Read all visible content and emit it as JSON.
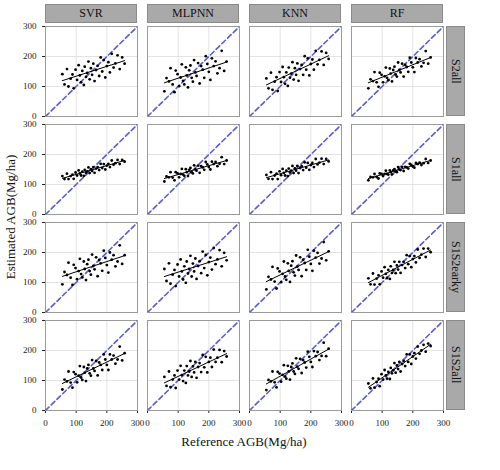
{
  "chart_data": {
    "type": "scatter",
    "x_label": "Reference AGB(Mg/ha)",
    "y_label": "Estimated AGB(Mg/ha)",
    "columns": [
      "SVR",
      "MLPNN",
      "KNN",
      "RF"
    ],
    "rows": [
      "S2all",
      "S1all",
      "S1S2earky",
      "S1S2all"
    ],
    "xlim": [
      0,
      300
    ],
    "ylim": [
      0,
      300
    ],
    "xticks": [
      0,
      100,
      200,
      300
    ],
    "yticks": [
      0,
      100,
      200,
      300
    ],
    "grid": true,
    "tick_labels": true,
    "series": [
      {
        "type": "scatter",
        "color": "#000000",
        "marker": "circle"
      },
      {
        "type": "regression",
        "color": "#000000",
        "line_style": "solid"
      },
      {
        "type": "line",
        "color": "#5b5fc7",
        "line_style": "dashed",
        "x": [
          0,
          300
        ],
        "values": [
          0,
          300
        ]
      }
    ],
    "x": [
      55,
      62,
      70,
      75,
      82,
      88,
      92,
      98,
      103,
      108,
      112,
      116,
      120,
      125,
      128,
      132,
      136,
      140,
      144,
      148,
      152,
      156,
      160,
      165,
      170,
      175,
      180,
      185,
      190,
      195,
      200,
      205,
      210,
      216,
      222,
      228,
      235,
      242,
      250,
      258
    ],
    "panels": [
      {
        "row": "S2all",
        "column": "SVR",
        "values": [
          141,
          107,
          158,
          100,
          126,
          140,
          94,
          156,
          122,
          171,
          137,
          114,
          152,
          105,
          166,
          132,
          145,
          183,
          124,
          161,
          139,
          176,
          118,
          155,
          169,
          135,
          197,
          150,
          188,
          130,
          168,
          181,
          147,
          209,
          163,
          177,
          204,
          158,
          197,
          176
        ]
      },
      {
        "row": "S2all",
        "column": "MLPNN",
        "values": [
          84,
          128,
          117,
          161,
          107,
          81,
          153,
          141,
          101,
          130,
          174,
          119,
          107,
          164,
          137,
          97,
          154,
          170,
          129,
          116,
          188,
          147,
          135,
          178,
          110,
          168,
          156,
          129,
          201,
          175,
          149,
          122,
          194,
          168,
          184,
          144,
          161,
          219,
          152,
          183
        ]
      },
      {
        "row": "S2all",
        "column": "KNN",
        "values": [
          127,
          94,
          146,
          89,
          116,
          131,
          85,
          148,
          115,
          165,
          131,
          109,
          147,
          102,
          163,
          129,
          143,
          181,
          123,
          161,
          139,
          177,
          119,
          158,
          172,
          139,
          201,
          156,
          194,
          137,
          175,
          190,
          156,
          219,
          174,
          189,
          217,
          172,
          212,
          192
        ]
      },
      {
        "row": "S2all",
        "column": "RF",
        "values": [
          94,
          124,
          118,
          148,
          114,
          99,
          146,
          139,
          114,
          134,
          163,
          129,
          121,
          160,
          143,
          117,
          155,
          166,
          140,
          133,
          180,
          155,
          147,
          176,
          133,
          172,
          165,
          149,
          196,
          180,
          164,
          148,
          195,
          180,
          191,
          167,
          179,
          218,
          176,
          197
        ]
      },
      {
        "row": "S1all",
        "column": "SVR",
        "values": [
          128,
          118,
          136,
          118,
          128,
          133,
          119,
          140,
          130,
          147,
          137,
          130,
          143,
          129,
          149,
          139,
          144,
          157,
          138,
          151,
          145,
          158,
          139,
          153,
          158,
          148,
          169,
          155,
          168,
          150,
          163,
          169,
          158,
          180,
          166,
          171,
          182,
          168,
          182,
          176
        ]
      },
      {
        "row": "S1all",
        "column": "MLPNN",
        "values": [
          110,
          127,
          124,
          141,
          123,
          114,
          141,
          137,
          124,
          135,
          152,
          133,
          129,
          151,
          141,
          128,
          149,
          155,
          141,
          137,
          164,
          150,
          146,
          163,
          139,
          161,
          157,
          149,
          175,
          167,
          158,
          150,
          176,
          168,
          175,
          161,
          169,
          191,
          168,
          180
        ]
      },
      {
        "row": "S1all",
        "column": "KNN",
        "values": [
          132,
          119,
          141,
          118,
          130,
          136,
          118,
          144,
          131,
          152,
          139,
          130,
          146,
          128,
          153,
          140,
          146,
          162,
          138,
          154,
          146,
          162,
          138,
          155,
          161,
          148,
          174,
          156,
          172,
          149,
          165,
          172,
          158,
          185,
          167,
          173,
          186,
          168,
          185,
          177
        ]
      },
      {
        "row": "S1all",
        "column": "RF",
        "values": [
          114,
          125,
          124,
          135,
          125,
          120,
          137,
          135,
          128,
          135,
          146,
          135,
          133,
          147,
          141,
          134,
          147,
          151,
          143,
          141,
          158,
          150,
          148,
          159,
          145,
          159,
          157,
          153,
          169,
          165,
          160,
          156,
          172,
          168,
          173,
          165,
          171,
          185,
          172,
          180
        ]
      },
      {
        "row": "S1S2earky",
        "column": "SVR",
        "values": [
          94,
          135,
          125,
          166,
          116,
          92,
          159,
          148,
          111,
          138,
          179,
          128,
          117,
          170,
          145,
          108,
          161,
          176,
          138,
          126,
          193,
          155,
          144,
          184,
          121,
          175,
          164,
          139,
          206,
          182,
          158,
          133,
          200,
          176,
          191,
          154,
          170,
          224,
          162,
          191
        ]
      },
      {
        "row": "S1S2earky",
        "column": "MLPNN",
        "values": [
          145,
          105,
          164,
          96,
          126,
          142,
          88,
          160,
          120,
          177,
          137,
          110,
          154,
          99,
          170,
          130,
          145,
          189,
          120,
          163,
          137,
          180,
          112,
          155,
          171,
          131,
          203,
          148,
          192,
          124,
          168,
          183,
          143,
          215,
          161,
          177,
          208,
          154,
          199,
          174
        ]
      },
      {
        "row": "S1S2earky",
        "column": "KNN",
        "values": [
          77,
          119,
          110,
          152,
          103,
          80,
          147,
          137,
          101,
          129,
          170,
          120,
          109,
          164,
          139,
          102,
          156,
          171,
          134,
          123,
          190,
          153,
          142,
          184,
          121,
          176,
          165,
          142,
          209,
          186,
          162,
          139,
          206,
          183,
          199,
          163,
          180,
          235,
          174,
          204
        ]
      },
      {
        "row": "S1S2earky",
        "column": "RF",
        "values": [
          114,
          94,
          130,
          93,
          113,
          124,
          94,
          137,
          116,
          151,
          129,
          115,
          142,
          112,
          154,
          132,
          142,
          169,
          131,
          157,
          143,
          169,
          132,
          158,
          169,
          148,
          191,
          161,
          188,
          151,
          178,
          188,
          167,
          210,
          182,
          193,
          213,
          185,
          213,
          201
        ]
      },
      {
        "row": "S1S2all",
        "column": "SVR",
        "values": [
          70,
          103,
          97,
          130,
          93,
          76,
          128,
          121,
          94,
          116,
          148,
          110,
          102,
          145,
          126,
          98,
          140,
          152,
          124,
          116,
          168,
          140,
          132,
          165,
          117,
          160,
          152,
          135,
          187,
          170,
          152,
          135,
          187,
          170,
          183,
          156,
          170,
          213,
          167,
          191
        ]
      },
      {
        "row": "S1S2all",
        "column": "MLPNN",
        "values": [
          112,
          82,
          130,
          78,
          103,
          117,
          75,
          133,
          103,
          149,
          118,
          98,
          133,
          92,
          148,
          117,
          130,
          165,
          112,
          147,
          127,
          162,
          109,
          145,
          158,
          128,
          185,
          144,
          179,
          127,
          162,
          176,
          145,
          203,
          162,
          176,
          202,
          161,
          198,
          180
        ]
      },
      {
        "row": "S1S2all",
        "column": "KNN",
        "values": [
          68,
          102,
          97,
          130,
          94,
          77,
          129,
          123,
          96,
          119,
          151,
          113,
          106,
          149,
          130,
          103,
          145,
          157,
          130,
          122,
          174,
          146,
          139,
          172,
          125,
          168,
          160,
          143,
          196,
          179,
          162,
          145,
          198,
          181,
          195,
          168,
          182,
          226,
          181,
          206
        ]
      },
      {
        "row": "S1S2all",
        "column": "RF",
        "values": [
          90,
          74,
          107,
          76,
          95,
          106,
          81,
          121,
          103,
          135,
          117,
          106,
          129,
          105,
          142,
          124,
          134,
          158,
          126,
          150,
          138,
          162,
          130,
          155,
          165,
          148,
          187,
          162,
          187,
          155,
          180,
          191,
          173,
          213,
          189,
          200,
          219,
          196,
          223,
          215
        ]
      }
    ]
  }
}
